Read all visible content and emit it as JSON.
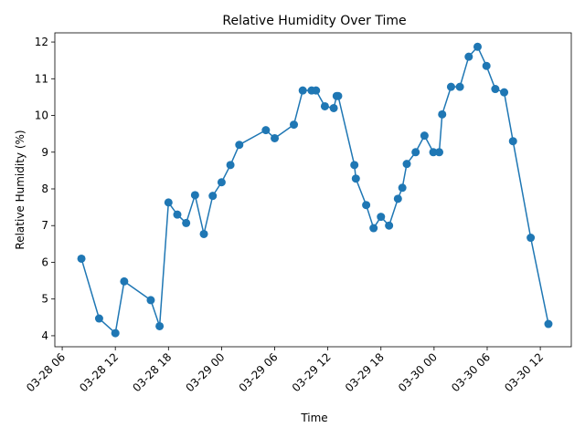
{
  "chart_data": {
    "type": "line",
    "title": "Relative Humidity Over Time",
    "xlabel": "Time",
    "ylabel": "Relative Humidity (%)",
    "xlim": [
      "2024-03-28T05:10",
      "2024-03-30T15:30"
    ],
    "ylim": [
      3.7,
      12.25
    ],
    "x_ticks": [
      {
        "t": "2024-03-28T06:00",
        "label": "03-28 06"
      },
      {
        "t": "2024-03-28T12:00",
        "label": "03-28 12"
      },
      {
        "t": "2024-03-28T18:00",
        "label": "03-28 18"
      },
      {
        "t": "2024-03-29T00:00",
        "label": "03-29 00"
      },
      {
        "t": "2024-03-29T06:00",
        "label": "03-29 06"
      },
      {
        "t": "2024-03-29T12:00",
        "label": "03-29 12"
      },
      {
        "t": "2024-03-29T18:00",
        "label": "03-29 18"
      },
      {
        "t": "2024-03-30T00:00",
        "label": "03-30 00"
      },
      {
        "t": "2024-03-30T06:00",
        "label": "03-30 06"
      },
      {
        "t": "2024-03-30T12:00",
        "label": "03-30 12"
      }
    ],
    "y_ticks": [
      4,
      5,
      6,
      7,
      8,
      9,
      10,
      11,
      12
    ],
    "grid": false,
    "line_color": "#1f77b4",
    "series": [
      {
        "x": [
          "2024-03-28T08:10",
          "2024-03-28T10:10",
          "2024-03-28T12:00",
          "2024-03-28T13:00",
          "2024-03-28T16:00",
          "2024-03-28T17:00",
          "2024-03-28T18:00",
          "2024-03-28T19:00",
          "2024-03-28T20:00",
          "2024-03-28T21:00",
          "2024-03-28T22:00",
          "2024-03-28T23:00",
          "2024-03-29T00:00",
          "2024-03-29T01:00",
          "2024-03-29T02:00",
          "2024-03-29T05:00",
          "2024-03-29T06:00",
          "2024-03-29T08:10",
          "2024-03-29T09:10",
          "2024-03-29T10:10",
          "2024-03-29T10:40",
          "2024-03-29T11:40",
          "2024-03-29T12:40",
          "2024-03-29T13:00",
          "2024-03-29T13:10",
          "2024-03-29T15:00",
          "2024-03-29T15:10",
          "2024-03-29T16:20",
          "2024-03-29T17:10",
          "2024-03-29T18:00",
          "2024-03-29T18:55",
          "2024-03-29T19:55",
          "2024-03-29T20:25",
          "2024-03-29T20:55",
          "2024-03-29T21:55",
          "2024-03-29T22:55",
          "2024-03-29T23:55",
          "2024-03-30T00:35",
          "2024-03-30T00:55",
          "2024-03-30T01:55",
          "2024-03-30T02:55",
          "2024-03-30T03:55",
          "2024-03-30T04:55",
          "2024-03-30T05:55",
          "2024-03-30T06:55",
          "2024-03-30T07:55",
          "2024-03-30T08:55",
          "2024-03-30T10:55",
          "2024-03-30T12:55"
        ],
        "y": [
          6.1,
          4.47,
          4.07,
          5.48,
          4.97,
          4.26,
          7.63,
          7.3,
          7.07,
          7.83,
          6.77,
          7.81,
          8.18,
          8.65,
          9.2,
          9.6,
          9.38,
          9.75,
          10.68,
          10.68,
          10.68,
          10.25,
          10.2,
          10.53,
          10.53,
          8.65,
          8.28,
          7.56,
          6.93,
          7.24,
          7.0,
          7.73,
          8.03,
          8.68,
          9.0,
          9.45,
          9.0,
          9.0,
          10.03,
          10.78,
          10.78,
          11.6,
          11.87,
          11.35,
          10.72,
          10.63,
          9.3,
          6.67,
          4.32
        ]
      }
    ]
  }
}
